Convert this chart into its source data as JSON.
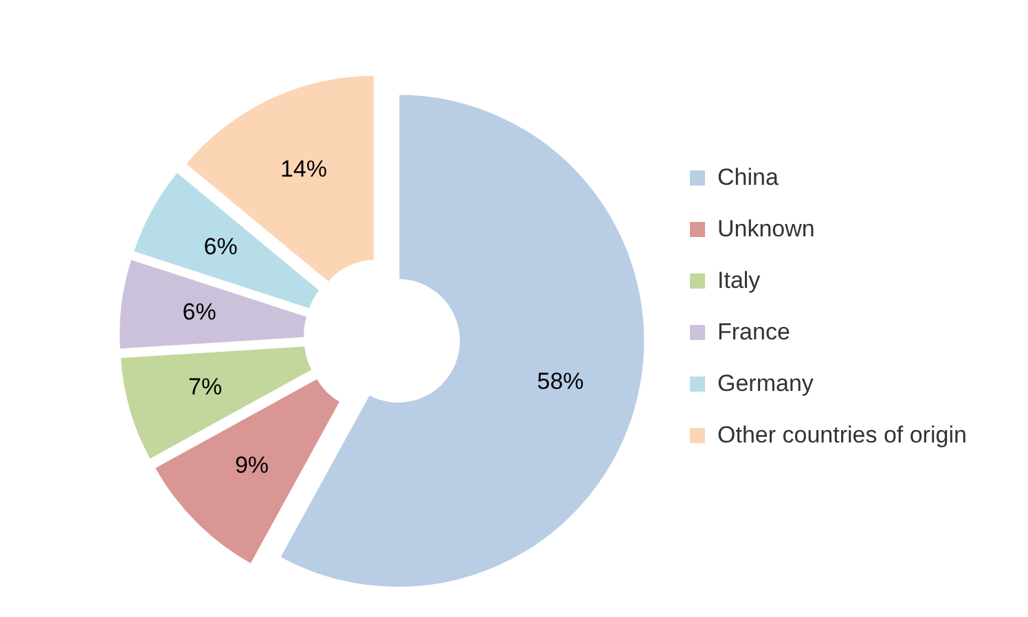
{
  "chart_data": {
    "type": "donut",
    "categories": [
      "China",
      "Unknown",
      "Italy",
      "France",
      "Germany",
      "Other countries of origin"
    ],
    "values": [
      58,
      9,
      7,
      6,
      6,
      14
    ],
    "colors": [
      "#b9cde5",
      "#d99694",
      "#c3d69b",
      "#ccc1da",
      "#b7dee8",
      "#fcd5b5"
    ],
    "value_labels": [
      "58%",
      "9%",
      "7%",
      "6%",
      "6%",
      "14%"
    ],
    "legend": "right"
  }
}
